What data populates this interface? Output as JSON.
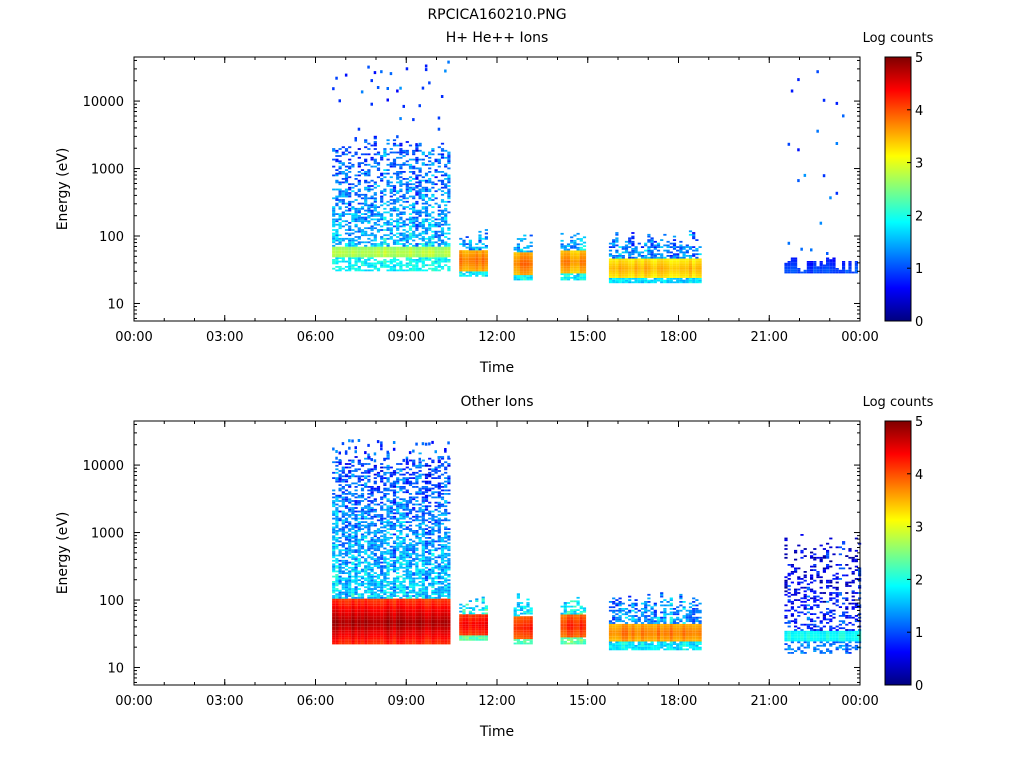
{
  "figure_title": "RPCICA160210.PNG",
  "colormap": [
    "#00007f",
    "#0000ff",
    "#0080ff",
    "#00ffff",
    "#80ff80",
    "#ffff00",
    "#ff8000",
    "#ff0000",
    "#7f0000"
  ],
  "chart_data": [
    {
      "type": "heatmap",
      "title": "H+ He++ Ions",
      "xlabel": "Time",
      "ylabel": "Energy (eV)",
      "x_scale": "linear",
      "y_scale": "log",
      "xlim": [
        0,
        24
      ],
      "ylim": [
        5.5,
        45000
      ],
      "x_ticks": [
        0,
        3,
        6,
        9,
        12,
        15,
        18,
        21,
        24
      ],
      "x_tick_labels": [
        "00:00",
        "03:00",
        "06:00",
        "09:00",
        "12:00",
        "15:00",
        "18:00",
        "21:00",
        "00:00"
      ],
      "y_ticks": [
        10,
        100,
        1000,
        10000
      ],
      "y_tick_labels": [
        "10",
        "100",
        "1000",
        "10000"
      ],
      "colorbar": {
        "label": "Log counts",
        "min": 0,
        "max": 5,
        "ticks": [
          "0",
          "1",
          "2",
          "3",
          "4",
          "5"
        ]
      },
      "blocks": [
        {
          "t0": 6.55,
          "t1": 10.45,
          "e_lo": 30,
          "e_hi": 2200,
          "peak_e": 55,
          "peak": 2.8,
          "base": 1.6,
          "width": 0.08,
          "density": 0.7,
          "sparse_hi": 40000
        },
        {
          "t0": 10.75,
          "t1": 11.65,
          "e_lo": 25,
          "e_hi": 95,
          "peak_e": 42,
          "peak": 3.8,
          "base": 1.5,
          "width": 0.16,
          "density": 0.95
        },
        {
          "t0": 12.55,
          "t1": 13.15,
          "e_lo": 22,
          "e_hi": 95,
          "peak_e": 38,
          "peak": 3.8,
          "base": 1.5,
          "width": 0.16,
          "density": 0.95
        },
        {
          "t0": 14.1,
          "t1": 14.85,
          "e_lo": 22,
          "e_hi": 95,
          "peak_e": 40,
          "peak": 3.7,
          "base": 1.5,
          "width": 0.16,
          "density": 0.95
        },
        {
          "t0": 15.7,
          "t1": 18.75,
          "e_lo": 20,
          "e_hi": 95,
          "peak_e": 32,
          "peak": 3.5,
          "base": 1.4,
          "width": 0.14,
          "density": 0.92
        },
        {
          "t0": 21.5,
          "t1": 23.9,
          "e_lo": 28,
          "e_hi": 35,
          "peak_e": 30,
          "peak": 1.0,
          "base": 0.8,
          "width": 0.2,
          "density": 0.2,
          "sparse_hi": 35000
        }
      ]
    },
    {
      "type": "heatmap",
      "title": "Other Ions",
      "xlabel": "Time",
      "ylabel": "Energy (eV)",
      "x_scale": "linear",
      "y_scale": "log",
      "xlim": [
        0,
        24
      ],
      "ylim": [
        5.5,
        45000
      ],
      "x_ticks": [
        0,
        3,
        6,
        9,
        12,
        15,
        18,
        21,
        24
      ],
      "x_tick_labels": [
        "00:00",
        "03:00",
        "06:00",
        "09:00",
        "12:00",
        "15:00",
        "18:00",
        "21:00",
        "00:00"
      ],
      "y_ticks": [
        10,
        100,
        1000,
        10000
      ],
      "y_tick_labels": [
        "10",
        "100",
        "1000",
        "10000"
      ],
      "colorbar": {
        "label": "Log counts",
        "min": 0,
        "max": 5,
        "ticks": [
          "0",
          "1",
          "2",
          "3",
          "4",
          "5"
        ]
      },
      "blocks": [
        {
          "t0": 6.55,
          "t1": 10.45,
          "e_lo": 22,
          "e_hi": 12000,
          "peak_e": 45,
          "peak": 4.8,
          "base": 1.8,
          "width": 0.35,
          "density": 0.9,
          "sparse_hi": 25000
        },
        {
          "t0": 10.75,
          "t1": 11.65,
          "e_lo": 25,
          "e_hi": 95,
          "peak_e": 42,
          "peak": 4.4,
          "base": 2.0,
          "width": 0.16,
          "density": 0.95
        },
        {
          "t0": 12.55,
          "t1": 13.15,
          "e_lo": 22,
          "e_hi": 95,
          "peak_e": 38,
          "peak": 4.3,
          "base": 2.0,
          "width": 0.16,
          "density": 0.95
        },
        {
          "t0": 14.1,
          "t1": 14.85,
          "e_lo": 22,
          "e_hi": 95,
          "peak_e": 40,
          "peak": 4.2,
          "base": 2.0,
          "width": 0.16,
          "density": 0.95
        },
        {
          "t0": 15.7,
          "t1": 18.75,
          "e_lo": 18,
          "e_hi": 95,
          "peak_e": 32,
          "peak": 3.8,
          "base": 1.5,
          "width": 0.14,
          "density": 0.92
        },
        {
          "t0": 21.5,
          "t1": 23.95,
          "e_lo": 16,
          "e_hi": 800,
          "peak_e": 28,
          "peak": 2.0,
          "base": 0.9,
          "width": 0.08,
          "density": 0.45
        }
      ]
    }
  ]
}
